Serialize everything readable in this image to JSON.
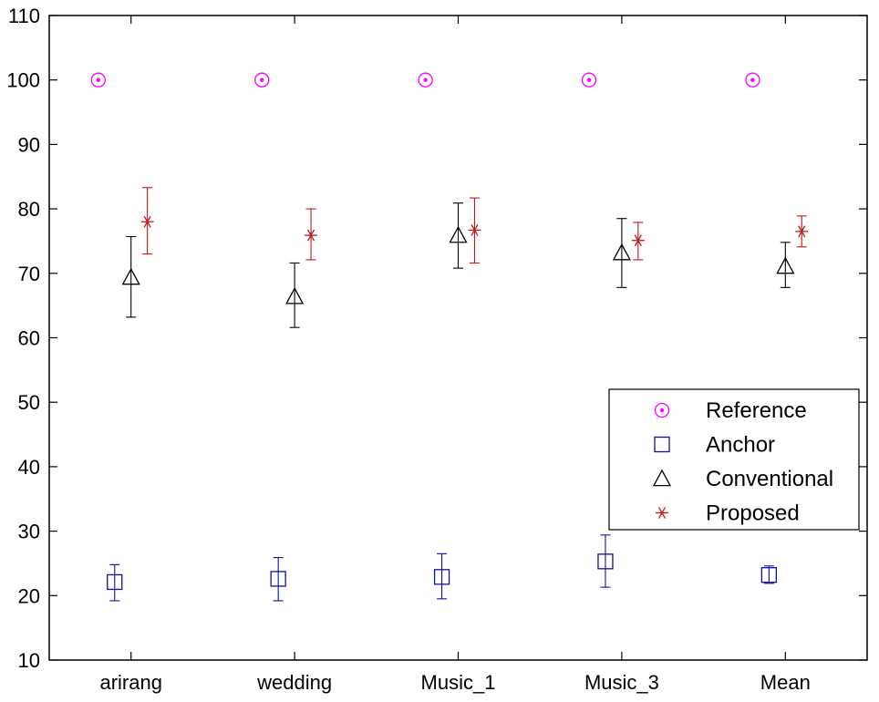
{
  "chart_data": {
    "type": "scatter",
    "subtype": "errorbar",
    "title": "",
    "xlabel": "",
    "ylabel": "",
    "categories": [
      "arirang",
      "wedding",
      "Music_1",
      "Music_3",
      "Mean"
    ],
    "ylim": [
      10,
      110
    ],
    "yticks": [
      10,
      20,
      30,
      40,
      50,
      60,
      70,
      80,
      90,
      100,
      110
    ],
    "grid": false,
    "legend_position": "right",
    "series": [
      {
        "name": "Reference",
        "color": "#ff00ff",
        "marker": "circle-dot",
        "offset": -0.2,
        "values": [
          100,
          100,
          100,
          100,
          100
        ],
        "lower": [
          100,
          100,
          100,
          100,
          100
        ],
        "upper": [
          100,
          100,
          100,
          100,
          100
        ]
      },
      {
        "name": "Anchor",
        "color": "#1010a0",
        "marker": "square",
        "offset": -0.1,
        "values": [
          22.1,
          22.6,
          22.9,
          25.3,
          23.2
        ],
        "lower": [
          19.2,
          19.2,
          19.5,
          21.3,
          21.9
        ],
        "upper": [
          24.8,
          25.9,
          26.5,
          29.4,
          24.6
        ]
      },
      {
        "name": "Conventional",
        "color": "#000000",
        "marker": "triangle",
        "offset": 0.0,
        "values": [
          69.4,
          66.4,
          75.9,
          73.2,
          71.1
        ],
        "lower": [
          63.2,
          61.6,
          70.8,
          67.8,
          67.8
        ],
        "upper": [
          75.7,
          71.6,
          80.9,
          78.5,
          74.8
        ]
      },
      {
        "name": "Proposed",
        "color": "#c01818",
        "marker": "star",
        "offset": 0.1,
        "values": [
          78.0,
          75.9,
          76.7,
          75.1,
          76.5
        ],
        "lower": [
          73.0,
          72.1,
          71.6,
          72.1,
          74.1
        ],
        "upper": [
          83.3,
          80.0,
          81.7,
          77.9,
          78.9
        ]
      }
    ]
  }
}
